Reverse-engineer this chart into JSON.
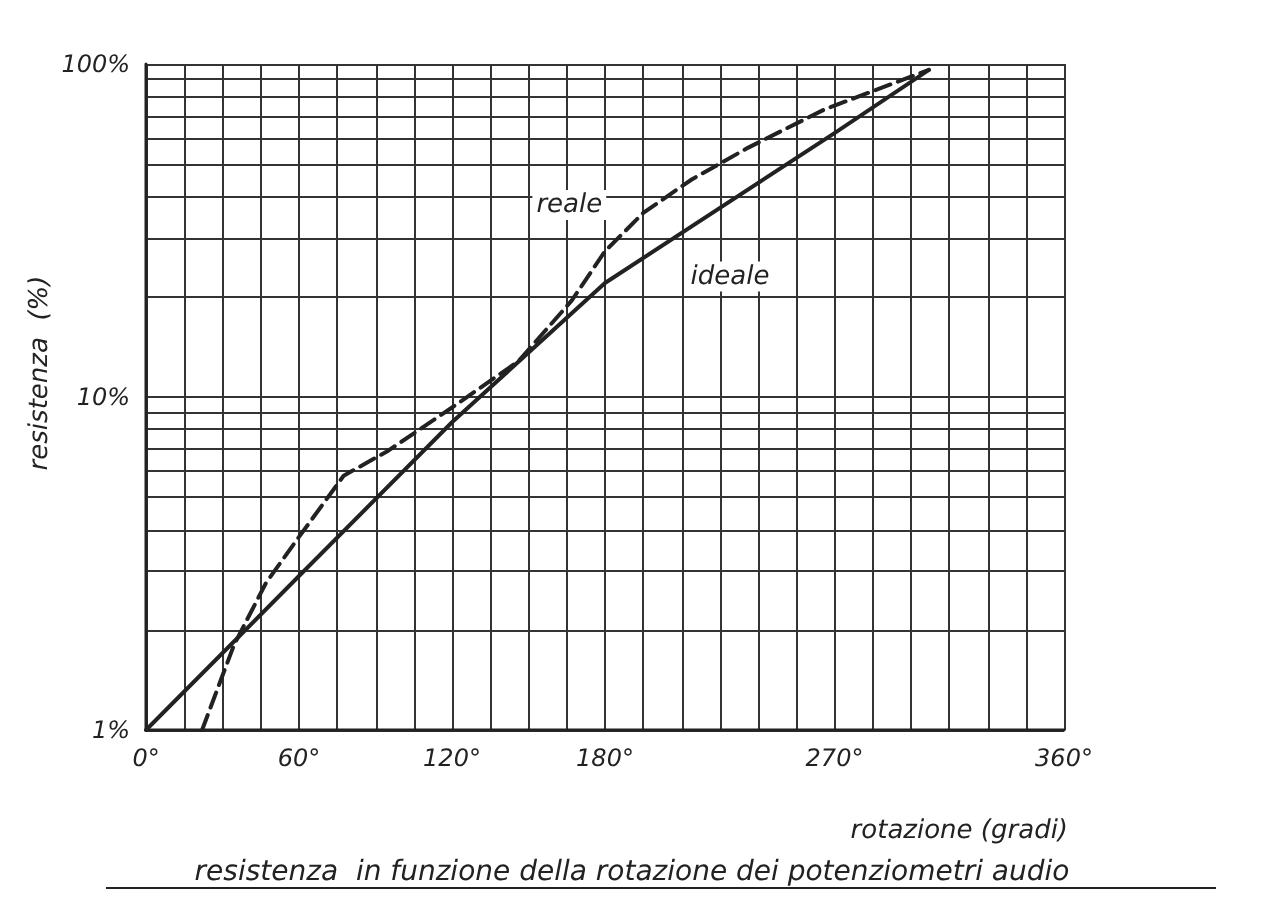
{
  "chart_data": {
    "type": "line",
    "title": "resistenza  in funzione della rotazione dei potenziometri audio",
    "xlabel": "rotazione (gradi)",
    "ylabel": "resistenza  (%)",
    "series": [
      {
        "color": "#222222",
        "line_style": "dashed",
        "x": [
          22,
          34.5,
          47,
          60,
          77.5,
          95,
          120,
          146,
          167,
          180,
          195,
          214,
          236,
          266,
          307
        ],
        "values": [
          1,
          1.8,
          2.76,
          3.8,
          5.8,
          6.9,
          9.3,
          12.8,
          19.5,
          27.4,
          35.7,
          45,
          56,
          73,
          96
        ]
      },
      {
        "color": "#222222",
        "line_style": "solid",
        "x": [
          0,
          60,
          120,
          180,
          270,
          307
        ],
        "values": [
          1,
          2.9,
          8.4,
          22,
          62,
          96
        ]
      }
    ],
    "annotations": [
      {
        "text": "reale",
        "x": 166,
        "y": 37.7
      },
      {
        "text": "ideale",
        "x": 229,
        "y": 23
      }
    ],
    "log": "y",
    "grid": true,
    "marker": "none",
    "xlim": [
      0,
      360
    ],
    "ylim": [
      1,
      100
    ],
    "xticks": [
      {
        "value": 0,
        "label": "0°"
      },
      {
        "value": 15,
        "label": null
      },
      {
        "value": 30,
        "label": null
      },
      {
        "value": 45,
        "label": null
      },
      {
        "value": 60,
        "label": "60°"
      },
      {
        "value": 75,
        "label": null
      },
      {
        "value": 90,
        "label": null
      },
      {
        "value": 105,
        "label": null
      },
      {
        "value": 120,
        "label": "120°"
      },
      {
        "value": 135,
        "label": null
      },
      {
        "value": 150,
        "label": null
      },
      {
        "value": 165,
        "label": null
      },
      {
        "value": 180,
        "label": "180°"
      },
      {
        "value": 195,
        "label": null
      },
      {
        "value": 210,
        "label": null
      },
      {
        "value": 225,
        "label": null
      },
      {
        "value": 240,
        "label": null
      },
      {
        "value": 255,
        "label": null
      },
      {
        "value": 270,
        "label": "270°"
      },
      {
        "value": 285,
        "label": null
      },
      {
        "value": 300,
        "label": null
      },
      {
        "value": 315,
        "label": null
      },
      {
        "value": 330,
        "label": null
      },
      {
        "value": 345,
        "label": null
      },
      {
        "value": 360,
        "label": "360°"
      }
    ],
    "yticks": [
      {
        "value": 1,
        "label": "1%"
      },
      {
        "value": 2,
        "label": null
      },
      {
        "value": 3,
        "label": null
      },
      {
        "value": 4,
        "label": null
      },
      {
        "value": 5,
        "label": null
      },
      {
        "value": 6,
        "label": null
      },
      {
        "value": 7,
        "label": null
      },
      {
        "value": 8,
        "label": null
      },
      {
        "value": 9,
        "label": null
      },
      {
        "value": 10,
        "label": "10%"
      },
      {
        "value": 20,
        "label": null
      },
      {
        "value": 30,
        "label": null
      },
      {
        "value": 40,
        "label": null
      },
      {
        "value": 50,
        "label": null
      },
      {
        "value": 60,
        "label": null
      },
      {
        "value": 70,
        "label": null
      },
      {
        "value": 80,
        "label": null
      },
      {
        "value": 90,
        "label": null
      },
      {
        "value": 100,
        "label": "100%"
      }
    ]
  }
}
